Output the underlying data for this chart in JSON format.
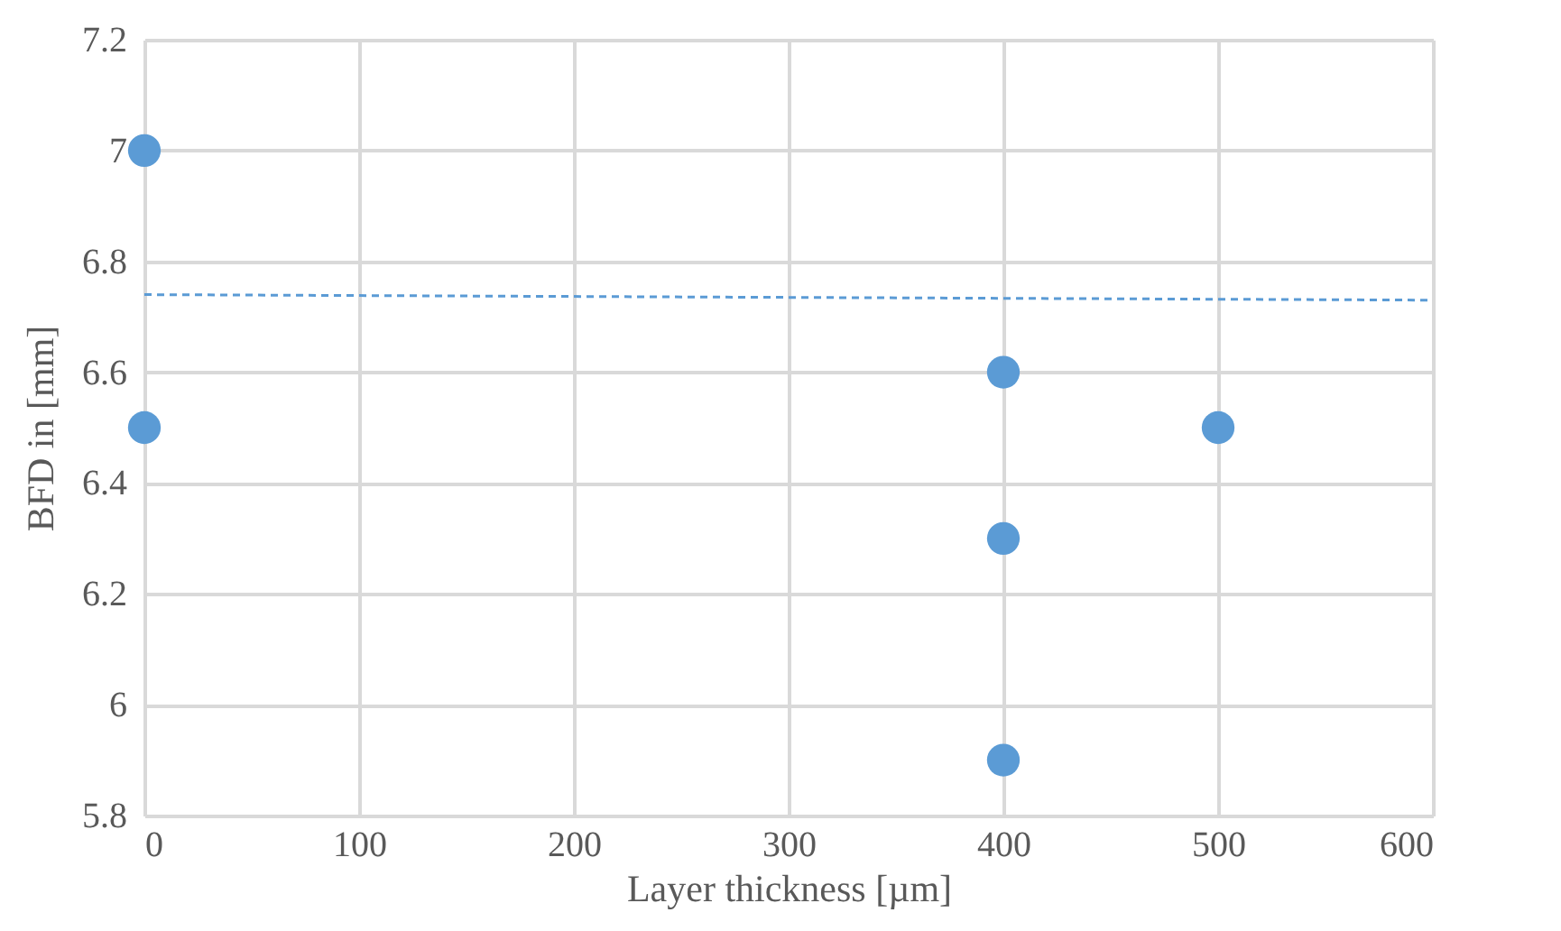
{
  "chart_data": {
    "type": "scatter",
    "xlabel": "Layer thickness [µm]",
    "ylabel": "BFD in [mm]",
    "xlim": [
      0,
      600
    ],
    "xticks": [
      0,
      100,
      200,
      300,
      400,
      500,
      600
    ],
    "ylim": [
      5.8,
      7.2
    ],
    "yticks": [
      5.8,
      6,
      6.2,
      6.4,
      6.6,
      6.8,
      7,
      7.2
    ],
    "grid": true,
    "marker": "circle",
    "series": [
      {
        "color": "#5b9bd5",
        "x": [
          0,
          0,
          400,
          400,
          400,
          500
        ],
        "values": [
          7,
          6.5,
          6.6,
          6.3,
          5.9,
          6.5
        ]
      },
      {
        "type": "line",
        "color": "#5b9bd5",
        "x": [
          0,
          600
        ],
        "values": [
          6.74,
          6.73
        ],
        "line_style": "dashed",
        "marker": "none"
      }
    ]
  }
}
